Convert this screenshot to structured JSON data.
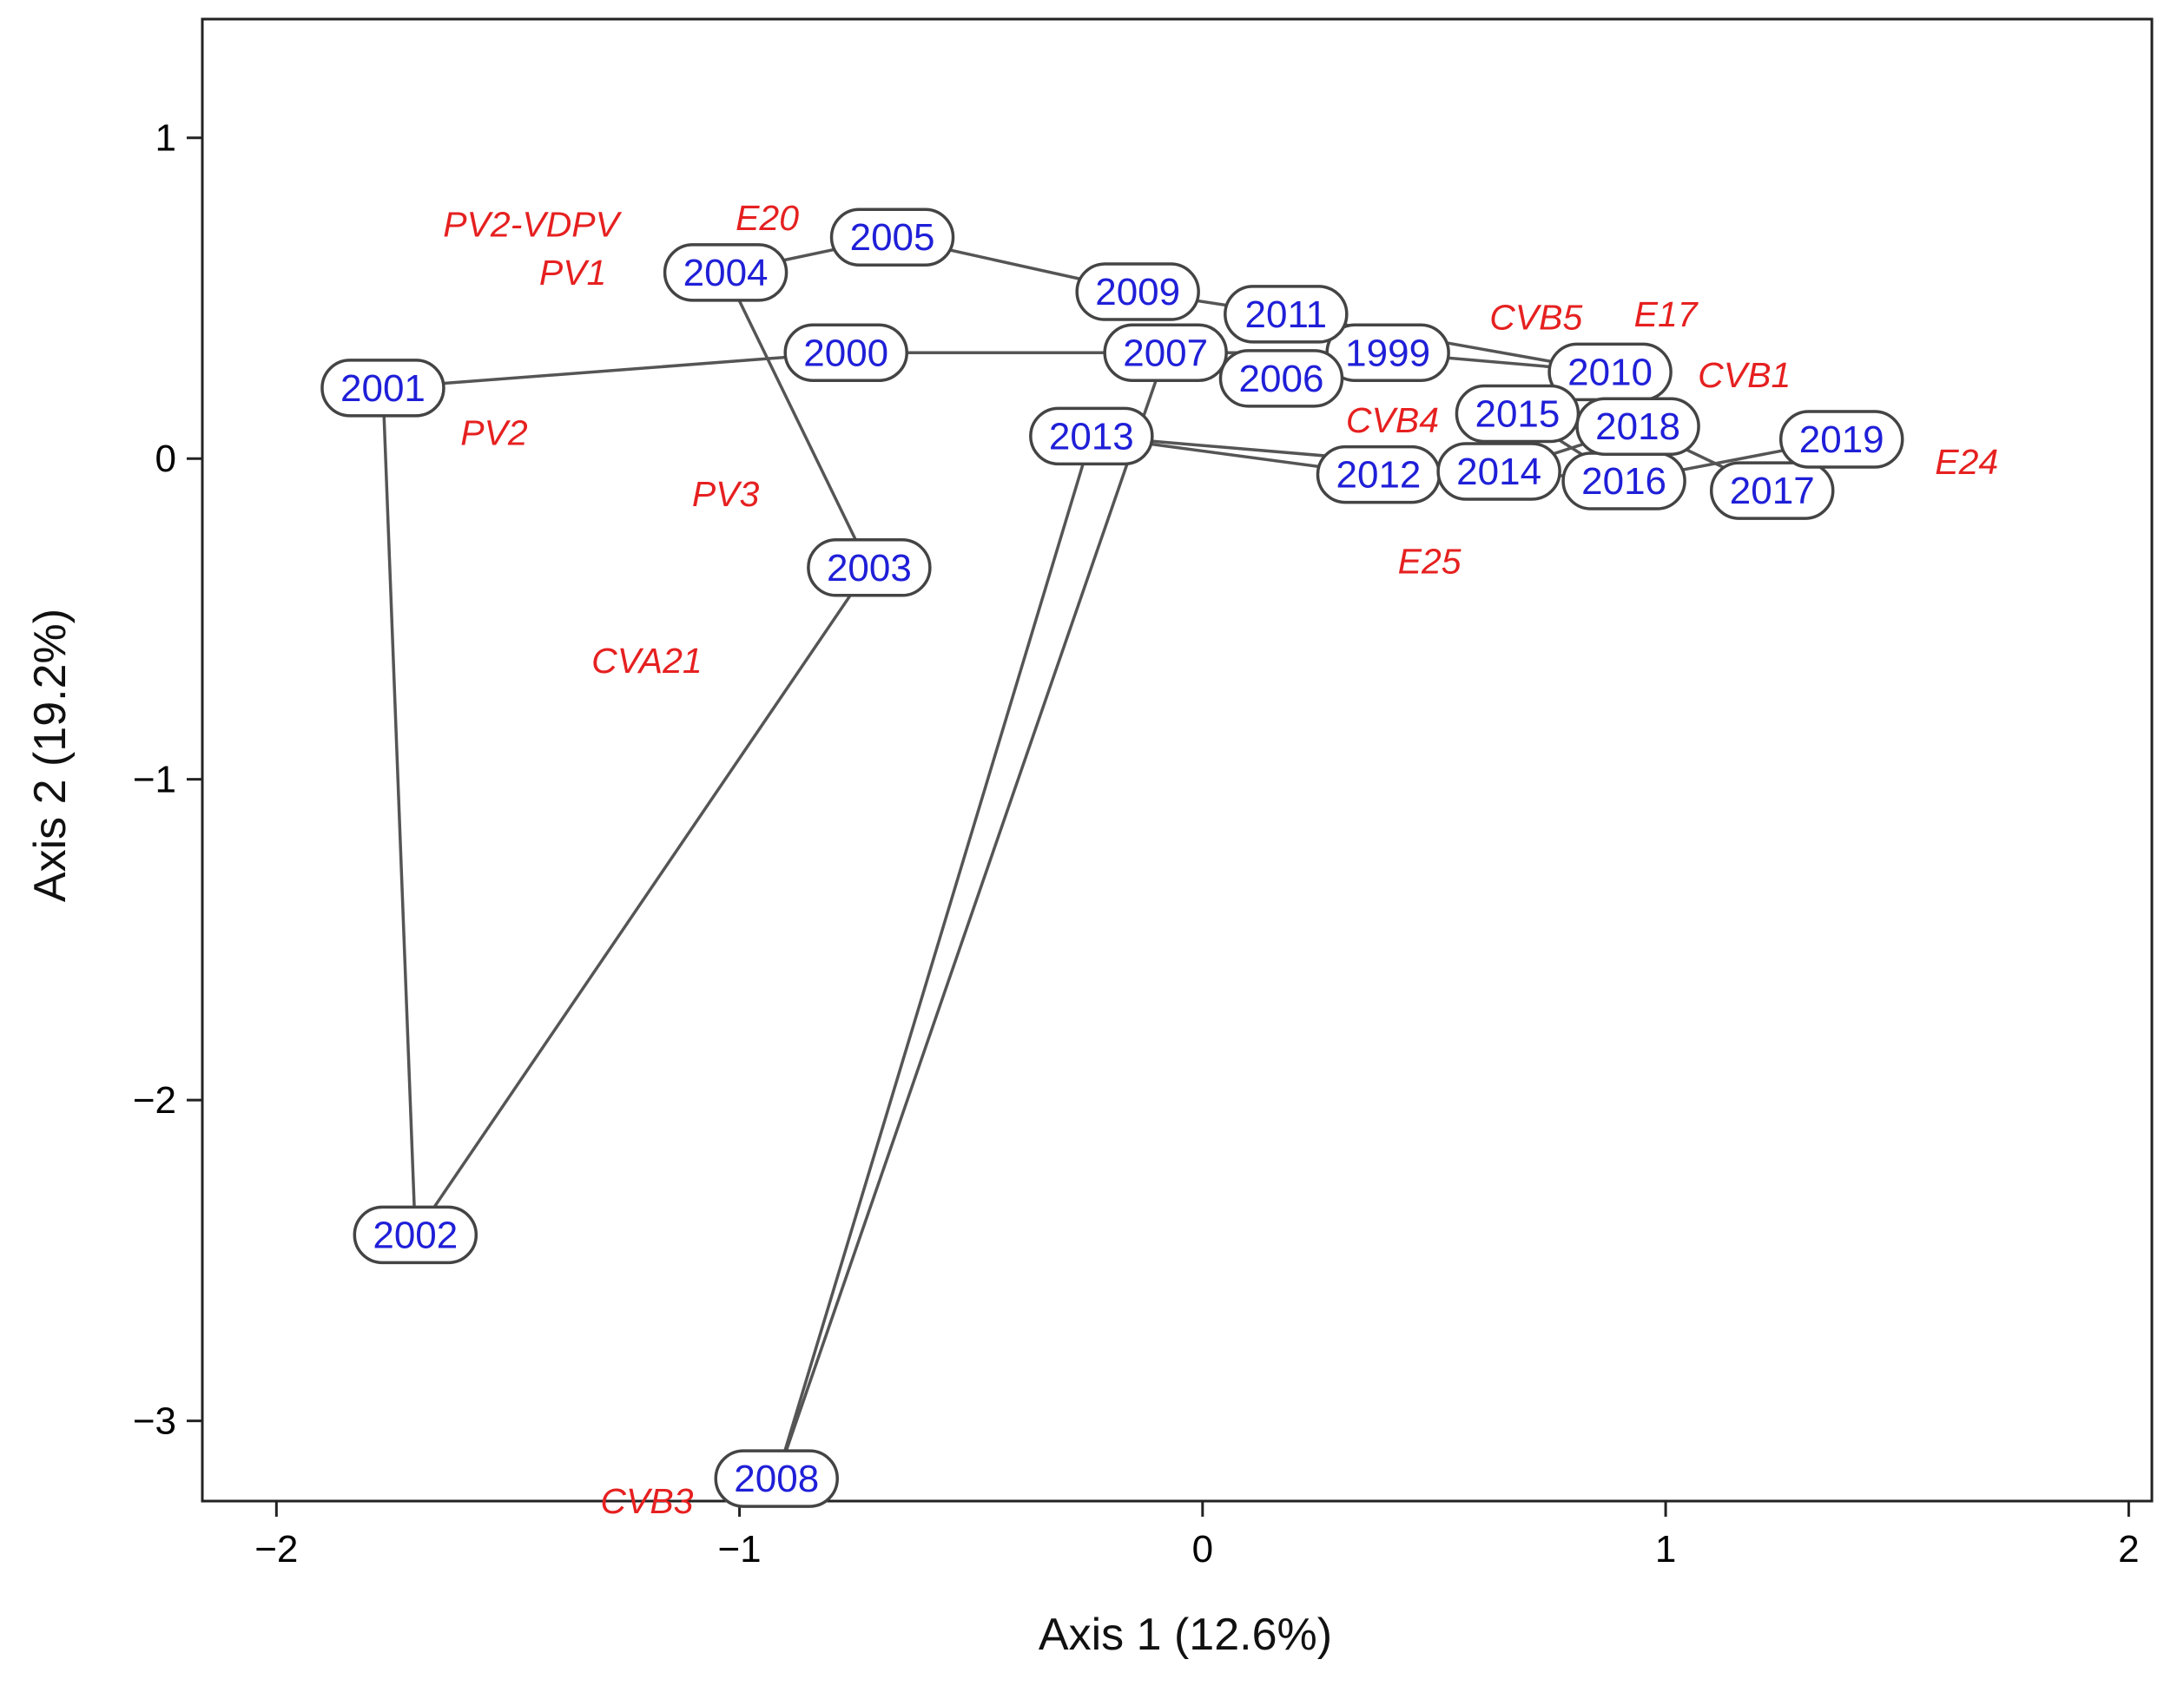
{
  "chart_data": {
    "type": "scatter",
    "subtype": "ordination biplot (years connected chronologically, species scores as labels)",
    "xlabel": "Axis 1 (12.6%)",
    "ylabel": "Axis 2 (19.2%)",
    "xlim": [
      -2.16,
      2.05
    ],
    "ylim": [
      -3.25,
      1.37
    ],
    "xticks": [
      -2,
      -1,
      0,
      1,
      2
    ],
    "yticks": [
      -3,
      -2,
      -1,
      0,
      1
    ],
    "xtick_labels": [
      "−2",
      "−1",
      "0",
      "1",
      "2"
    ],
    "ytick_labels": [
      "−3",
      "−2",
      "−1",
      "0",
      "1"
    ],
    "grid": false,
    "colors": {
      "years": "#1f1fd8",
      "species": "#e62020",
      "path": "#555555",
      "frame": "#222222"
    },
    "years": [
      {
        "label": "1999",
        "x": 0.4,
        "y": 0.33
      },
      {
        "label": "2000",
        "x": -0.77,
        "y": 0.33
      },
      {
        "label": "2001",
        "x": -1.77,
        "y": 0.22
      },
      {
        "label": "2002",
        "x": -1.7,
        "y": -2.42
      },
      {
        "label": "2003",
        "x": -0.72,
        "y": -0.34
      },
      {
        "label": "2004",
        "x": -1.03,
        "y": 0.58
      },
      {
        "label": "2005",
        "x": -0.67,
        "y": 0.69
      },
      {
        "label": "2006",
        "x": 0.17,
        "y": 0.25
      },
      {
        "label": "2007",
        "x": -0.08,
        "y": 0.33
      },
      {
        "label": "2008",
        "x": -0.92,
        "y": -3.18
      },
      {
        "label": "2009",
        "x": -0.14,
        "y": 0.52
      },
      {
        "label": "2010",
        "x": 0.88,
        "y": 0.27
      },
      {
        "label": "2011",
        "x": 0.18,
        "y": 0.45
      },
      {
        "label": "2012",
        "x": 0.38,
        "y": -0.05
      },
      {
        "label": "2013",
        "x": -0.24,
        "y": 0.07
      },
      {
        "label": "2014",
        "x": 0.64,
        "y": -0.04
      },
      {
        "label": "2015",
        "x": 0.68,
        "y": 0.14
      },
      {
        "label": "2016",
        "x": 0.91,
        "y": -0.07
      },
      {
        "label": "2017",
        "x": 1.23,
        "y": -0.1
      },
      {
        "label": "2018",
        "x": 0.94,
        "y": 0.1
      },
      {
        "label": "2019",
        "x": 1.38,
        "y": 0.06
      }
    ],
    "path_order": [
      "1999",
      "2000",
      "2001",
      "2002",
      "2003",
      "2004",
      "2005",
      "2006",
      "2007",
      "2008",
      "2009",
      "2010",
      "2011",
      "2012",
      "2013",
      "2014",
      "2015",
      "2016",
      "2017",
      "2018",
      "2019"
    ],
    "path_segments": [
      [
        "2000",
        "2001"
      ],
      [
        "2001",
        "2002"
      ],
      [
        "2002",
        "2003"
      ],
      [
        "2003",
        "2004"
      ],
      [
        "2004",
        "2005"
      ],
      [
        "2005",
        "2009"
      ],
      [
        "2000",
        "1999"
      ],
      [
        "1999",
        "2010"
      ],
      [
        "2009",
        "2011"
      ],
      [
        "2011",
        "2010"
      ],
      [
        "2006",
        "2007"
      ],
      [
        "2007",
        "2008"
      ],
      [
        "2008",
        "2013"
      ],
      [
        "2013",
        "2012"
      ],
      [
        "2013",
        "2016"
      ],
      [
        "2010",
        "2015"
      ],
      [
        "2015",
        "2016"
      ],
      [
        "2018",
        "2017"
      ],
      [
        "2017",
        "2019"
      ],
      [
        "2016",
        "2019"
      ],
      [
        "2014",
        "2018"
      ]
    ],
    "species": [
      {
        "label": "PV2-VDPV",
        "x": -1.45,
        "y": 0.73
      },
      {
        "label": "PV1",
        "x": -1.36,
        "y": 0.58
      },
      {
        "label": "E20",
        "x": -0.94,
        "y": 0.75
      },
      {
        "label": "PV2",
        "x": -1.53,
        "y": 0.08
      },
      {
        "label": "PV3",
        "x": -1.03,
        "y": -0.11
      },
      {
        "label": "CVA21",
        "x": -1.2,
        "y": -0.63
      },
      {
        "label": "CVB3",
        "x": -1.2,
        "y": -3.25
      },
      {
        "label": "CVB5",
        "x": 0.72,
        "y": 0.44
      },
      {
        "label": "E17",
        "x": 1.0,
        "y": 0.45
      },
      {
        "label": "CVB1",
        "x": 1.17,
        "y": 0.26
      },
      {
        "label": "CVB4",
        "x": 0.41,
        "y": 0.12
      },
      {
        "label": "E24",
        "x": 1.65,
        "y": -0.01
      },
      {
        "label": "E25",
        "x": 0.49,
        "y": -0.32
      }
    ]
  }
}
